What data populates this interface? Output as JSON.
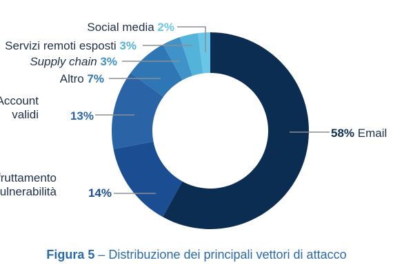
{
  "chart_data": {
    "type": "pie",
    "variant": "donut",
    "start_angle_deg": 0,
    "direction": "clockwise",
    "legend": "none",
    "slices": [
      {
        "label": "Email",
        "value": 58,
        "value_label": "58%",
        "color": "#0c2d52",
        "pct_color": "#0c2d52"
      },
      {
        "label_lines": [
          "Sfruttamento",
          "di vulnerabilità"
        ],
        "value": 14,
        "value_label": "14%",
        "color": "#1b4d92",
        "pct_color": "#1b4d92"
      },
      {
        "label_lines": [
          "Account",
          "validi"
        ],
        "value": 13,
        "value_label": "13%",
        "color": "#2a63a6",
        "pct_color": "#2a63a6"
      },
      {
        "label": "Altro",
        "value": 7,
        "value_label": "7%",
        "color": "#2f76b5",
        "pct_color": "#2f76b5"
      },
      {
        "label": "Supply chain",
        "italic": true,
        "value": 3,
        "value_label": "3%",
        "color": "#3f93c8",
        "pct_color": "#3f93c8"
      },
      {
        "label": "Servizi remoti esposti",
        "value": 3,
        "value_label": "3%",
        "color": "#54b3d9",
        "pct_color": "#54b3d9"
      },
      {
        "label": "Social media",
        "value": 2,
        "value_label": "2%",
        "color": "#6ac6e6",
        "pct_color": "#6ac6e6"
      }
    ]
  },
  "caption": {
    "figure": "Figura 5",
    "separator": " – ",
    "text": "Distribuzione dei principali vettori di attacco"
  }
}
